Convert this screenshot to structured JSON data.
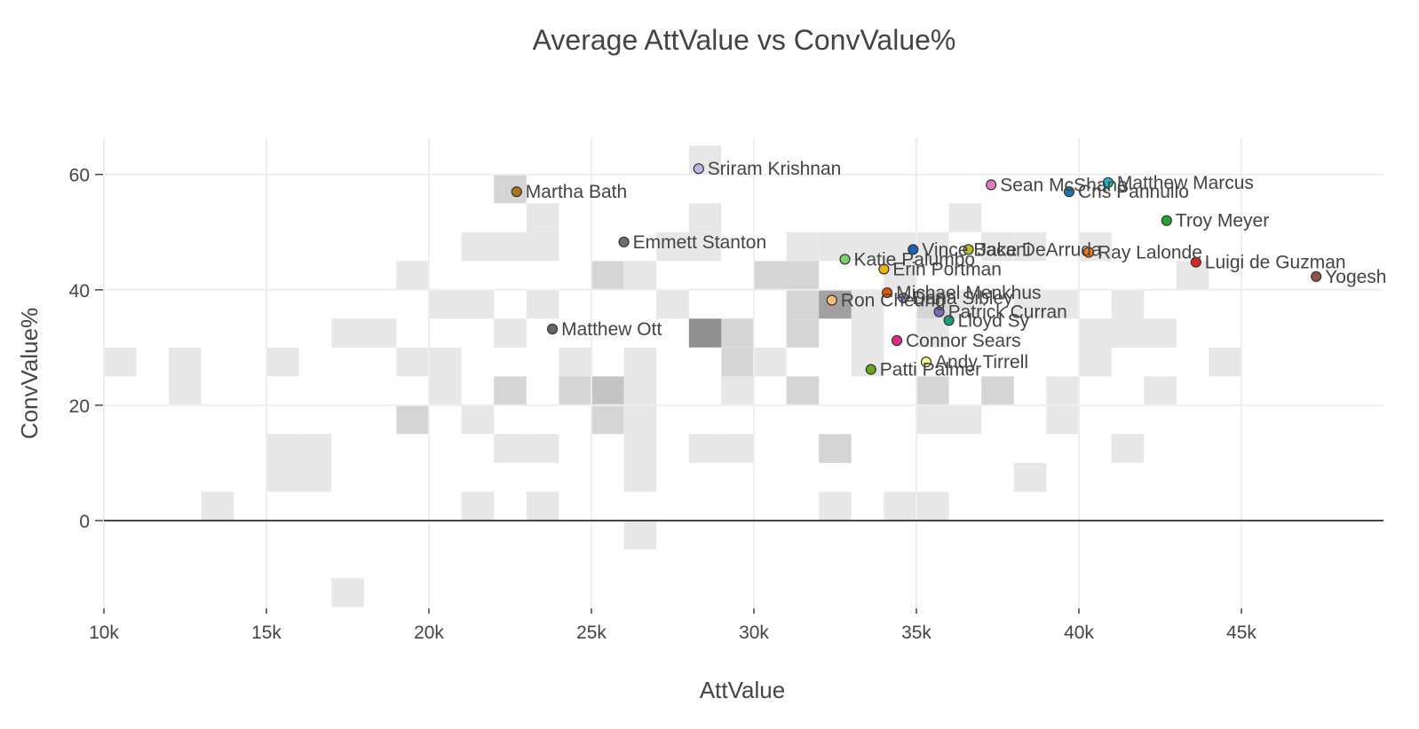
{
  "chart_data": {
    "type": "scatter",
    "title": "Average AttValue vs ConvValue%",
    "xlabel": "AttValue",
    "ylabel": "ConvValue%",
    "xlim": [
      10000,
      49500
    ],
    "ylim": [
      -16,
      66
    ],
    "x_ticks": [
      {
        "value": 10000,
        "label": "10k"
      },
      {
        "value": 15000,
        "label": "15k"
      },
      {
        "value": 20000,
        "label": "20k"
      },
      {
        "value": 25000,
        "label": "25k"
      },
      {
        "value": 30000,
        "label": "30k"
      },
      {
        "value": 35000,
        "label": "35k"
      },
      {
        "value": 40000,
        "label": "40k"
      },
      {
        "value": 45000,
        "label": "45k"
      }
    ],
    "y_ticks": [
      {
        "value": 0,
        "label": "0"
      },
      {
        "value": 20,
        "label": "20"
      },
      {
        "value": 40,
        "label": "40"
      },
      {
        "value": 60,
        "label": "60"
      }
    ],
    "grid": true,
    "points": [
      {
        "name": "Sriram Krishnan",
        "x": 28300,
        "y": 61.0,
        "color": "#bcb5e0"
      },
      {
        "name": "Martha Bath",
        "x": 22700,
        "y": 57.0,
        "color": "#a6761d"
      },
      {
        "name": "Emmett Stanton",
        "x": 26000,
        "y": 48.3,
        "color": "#6e6e6e"
      },
      {
        "name": "Sean McShane",
        "x": 37300,
        "y": 58.2,
        "color": "#e377c2"
      },
      {
        "name": "Matthew Marcus",
        "x": 40900,
        "y": 58.6,
        "color": "#17becf"
      },
      {
        "name": "Cris Pannullo",
        "x": 39700,
        "y": 57.0,
        "color": "#1f77b4"
      },
      {
        "name": "Troy Meyer",
        "x": 42700,
        "y": 52.0,
        "color": "#2ca02c"
      },
      {
        "name": "Vince Bacani",
        "x": 34900,
        "y": 47.0,
        "color": "#1f5fb4"
      },
      {
        "name": "Jake DeArruda",
        "x": 36600,
        "y": 47.0,
        "color": "#bcbd22"
      },
      {
        "name": "Ray Lalonde",
        "x": 40300,
        "y": 46.5,
        "color": "#ff7f0e"
      },
      {
        "name": "Luigi de Guzman",
        "x": 43600,
        "y": 44.8,
        "color": "#d62728"
      },
      {
        "name": "Yogesh",
        "x": 47300,
        "y": 42.3,
        "color": "#8c564b"
      },
      {
        "name": "Katie Palumbo",
        "x": 32800,
        "y": 45.3,
        "color": "#7fcf6f"
      },
      {
        "name": "Erin Portman",
        "x": 34000,
        "y": 43.6,
        "color": "#f0b010"
      },
      {
        "name": "Michael Menkhus",
        "x": 34100,
        "y": 39.5,
        "color": "#e6550d"
      },
      {
        "name": "Ron Cheung",
        "x": 32400,
        "y": 38.2,
        "color": "#fdbf6f"
      },
      {
        "name": "Dana Sibley",
        "x": 34600,
        "y": 38.6,
        "color": "#9e86c8"
      },
      {
        "name": "Patrick Curran",
        "x": 35700,
        "y": 36.2,
        "color": "#7570b3"
      },
      {
        "name": "Lloyd Sy",
        "x": 36000,
        "y": 34.7,
        "color": "#1b9e77"
      },
      {
        "name": "Matthew Ott",
        "x": 23800,
        "y": 33.2,
        "color": "#666666"
      },
      {
        "name": "Connor Sears",
        "x": 34400,
        "y": 31.2,
        "color": "#e7298a"
      },
      {
        "name": "Andy Tirrell",
        "x": 35300,
        "y": 27.5,
        "color": "#ffff99"
      },
      {
        "name": "Patti Palmer",
        "x": 33600,
        "y": 26.2,
        "color": "#66a61e"
      }
    ],
    "heatmap_bins": {
      "x_bin_size": 1000,
      "y_bin_size": 5,
      "cells": [
        {
          "x": 28000,
          "y": 60,
          "count": 1
        },
        {
          "x": 22000,
          "y": 55,
          "count": 2
        },
        {
          "x": 23000,
          "y": 50,
          "count": 1
        },
        {
          "x": 28000,
          "y": 50,
          "count": 1
        },
        {
          "x": 36000,
          "y": 50,
          "count": 1
        },
        {
          "x": 21000,
          "y": 45,
          "count": 1
        },
        {
          "x": 22000,
          "y": 45,
          "count": 1
        },
        {
          "x": 23000,
          "y": 45,
          "count": 1
        },
        {
          "x": 27000,
          "y": 45,
          "count": 1
        },
        {
          "x": 28000,
          "y": 45,
          "count": 1
        },
        {
          "x": 31000,
          "y": 45,
          "count": 1
        },
        {
          "x": 32000,
          "y": 45,
          "count": 1
        },
        {
          "x": 33000,
          "y": 45,
          "count": 1
        },
        {
          "x": 34000,
          "y": 45,
          "count": 1
        },
        {
          "x": 35000,
          "y": 45,
          "count": 1
        },
        {
          "x": 37000,
          "y": 45,
          "count": 1
        },
        {
          "x": 38000,
          "y": 45,
          "count": 1
        },
        {
          "x": 40000,
          "y": 45,
          "count": 1
        },
        {
          "x": 19000,
          "y": 40,
          "count": 1
        },
        {
          "x": 25000,
          "y": 40,
          "count": 2
        },
        {
          "x": 26000,
          "y": 40,
          "count": 1
        },
        {
          "x": 30000,
          "y": 40,
          "count": 2
        },
        {
          "x": 31000,
          "y": 40,
          "count": 2
        },
        {
          "x": 34000,
          "y": 40,
          "count": 1
        },
        {
          "x": 43000,
          "y": 40,
          "count": 1
        },
        {
          "x": 20000,
          "y": 35,
          "count": 1
        },
        {
          "x": 21000,
          "y": 35,
          "count": 1
        },
        {
          "x": 23000,
          "y": 35,
          "count": 1
        },
        {
          "x": 27000,
          "y": 35,
          "count": 1
        },
        {
          "x": 31000,
          "y": 35,
          "count": 2
        },
        {
          "x": 32000,
          "y": 35,
          "count": 5
        },
        {
          "x": 33000,
          "y": 35,
          "count": 1
        },
        {
          "x": 35000,
          "y": 35,
          "count": 2
        },
        {
          "x": 36000,
          "y": 35,
          "count": 1
        },
        {
          "x": 38000,
          "y": 35,
          "count": 1
        },
        {
          "x": 39000,
          "y": 35,
          "count": 1
        },
        {
          "x": 41000,
          "y": 35,
          "count": 1
        },
        {
          "x": 17000,
          "y": 30,
          "count": 1
        },
        {
          "x": 18000,
          "y": 30,
          "count": 1
        },
        {
          "x": 22000,
          "y": 30,
          "count": 1
        },
        {
          "x": 28000,
          "y": 30,
          "count": 6
        },
        {
          "x": 29000,
          "y": 30,
          "count": 2
        },
        {
          "x": 31000,
          "y": 30,
          "count": 2
        },
        {
          "x": 33000,
          "y": 30,
          "count": 1
        },
        {
          "x": 35000,
          "y": 30,
          "count": 1
        },
        {
          "x": 40000,
          "y": 30,
          "count": 1
        },
        {
          "x": 41000,
          "y": 30,
          "count": 1
        },
        {
          "x": 42000,
          "y": 30,
          "count": 1
        },
        {
          "x": 10000,
          "y": 25,
          "count": 1
        },
        {
          "x": 12000,
          "y": 25,
          "count": 1
        },
        {
          "x": 15000,
          "y": 25,
          "count": 1
        },
        {
          "x": 19000,
          "y": 25,
          "count": 1
        },
        {
          "x": 20000,
          "y": 25,
          "count": 1
        },
        {
          "x": 24000,
          "y": 25,
          "count": 1
        },
        {
          "x": 26000,
          "y": 25,
          "count": 1
        },
        {
          "x": 29000,
          "y": 25,
          "count": 2
        },
        {
          "x": 30000,
          "y": 25,
          "count": 1
        },
        {
          "x": 33000,
          "y": 25,
          "count": 1
        },
        {
          "x": 40000,
          "y": 25,
          "count": 1
        },
        {
          "x": 44000,
          "y": 25,
          "count": 1
        },
        {
          "x": 12000,
          "y": 20,
          "count": 1
        },
        {
          "x": 20000,
          "y": 20,
          "count": 1
        },
        {
          "x": 22000,
          "y": 20,
          "count": 2
        },
        {
          "x": 24000,
          "y": 20,
          "count": 2
        },
        {
          "x": 25000,
          "y": 20,
          "count": 3
        },
        {
          "x": 26000,
          "y": 20,
          "count": 1
        },
        {
          "x": 29000,
          "y": 20,
          "count": 1
        },
        {
          "x": 31000,
          "y": 20,
          "count": 2
        },
        {
          "x": 35000,
          "y": 20,
          "count": 2
        },
        {
          "x": 37000,
          "y": 20,
          "count": 2
        },
        {
          "x": 39000,
          "y": 20,
          "count": 1
        },
        {
          "x": 42000,
          "y": 20,
          "count": 1
        },
        {
          "x": 19000,
          "y": 15,
          "count": 2
        },
        {
          "x": 21000,
          "y": 15,
          "count": 1
        },
        {
          "x": 25000,
          "y": 15,
          "count": 2
        },
        {
          "x": 26000,
          "y": 15,
          "count": 1
        },
        {
          "x": 35000,
          "y": 15,
          "count": 1
        },
        {
          "x": 36000,
          "y": 15,
          "count": 1
        },
        {
          "x": 39000,
          "y": 15,
          "count": 1
        },
        {
          "x": 15000,
          "y": 10,
          "count": 1
        },
        {
          "x": 16000,
          "y": 10,
          "count": 1
        },
        {
          "x": 22000,
          "y": 10,
          "count": 1
        },
        {
          "x": 23000,
          "y": 10,
          "count": 1
        },
        {
          "x": 26000,
          "y": 10,
          "count": 1
        },
        {
          "x": 28000,
          "y": 10,
          "count": 1
        },
        {
          "x": 29000,
          "y": 10,
          "count": 1
        },
        {
          "x": 32000,
          "y": 10,
          "count": 2
        },
        {
          "x": 41000,
          "y": 10,
          "count": 1
        },
        {
          "x": 15000,
          "y": 5,
          "count": 1
        },
        {
          "x": 16000,
          "y": 5,
          "count": 1
        },
        {
          "x": 26000,
          "y": 5,
          "count": 1
        },
        {
          "x": 38000,
          "y": 5,
          "count": 1
        },
        {
          "x": 13000,
          "y": 0,
          "count": 1
        },
        {
          "x": 21000,
          "y": 0,
          "count": 1
        },
        {
          "x": 23000,
          "y": 0,
          "count": 1
        },
        {
          "x": 32000,
          "y": 0,
          "count": 1
        },
        {
          "x": 34000,
          "y": 0,
          "count": 1
        },
        {
          "x": 35000,
          "y": 0,
          "count": 1
        },
        {
          "x": 26000,
          "y": -5,
          "count": 1
        },
        {
          "x": 17000,
          "y": -15,
          "count": 1
        }
      ]
    }
  }
}
